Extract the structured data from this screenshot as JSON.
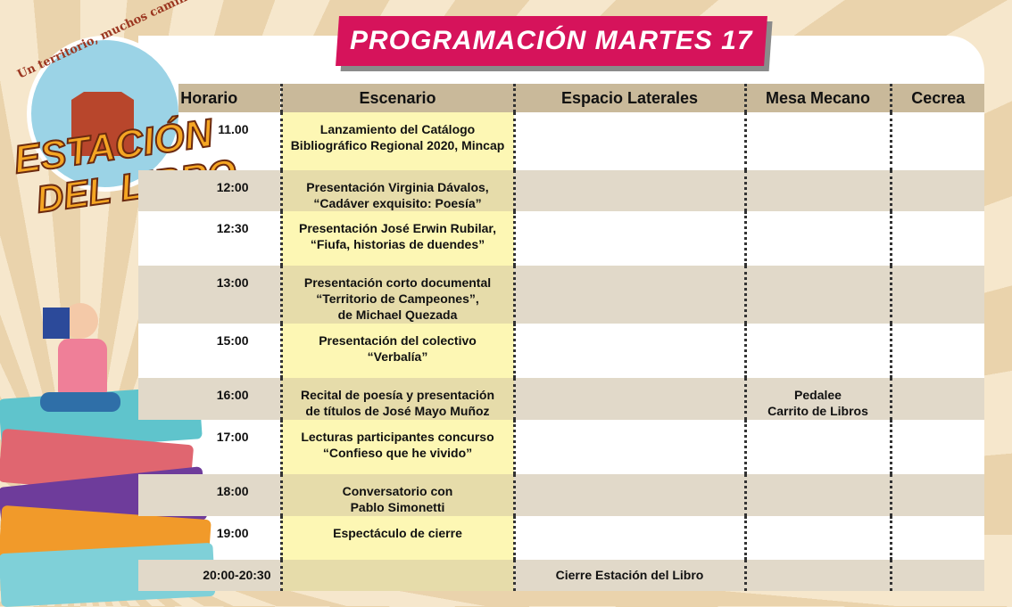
{
  "banner": {
    "title": "PROGRAMACIÓN MARTES 17"
  },
  "logo": {
    "tagline": "Un territorio, muchos caminos",
    "line1": "ESTACIÓN",
    "line2": "DEL LIBRO"
  },
  "table": {
    "headers": [
      "Horario",
      "Escenario",
      "Espacio Laterales",
      "Mesa Mecano",
      "Cecrea"
    ],
    "rows": [
      {
        "time": "11.00",
        "escenario": "Lanzamiento del Catálogo\nBibliográfico Regional 2020, Mincap",
        "laterales": "",
        "mecano": "",
        "cecrea": ""
      },
      {
        "time": "12:00",
        "escenario": "Presentación Virginia Dávalos,\n“Cadáver exquisito: Poesía”",
        "laterales": "",
        "mecano": "",
        "cecrea": ""
      },
      {
        "time": "12:30",
        "escenario": "Presentación  José Erwin Rubilar,\n“Fiufa, historias de duendes”",
        "laterales": "",
        "mecano": "",
        "cecrea": ""
      },
      {
        "time": "13:00",
        "escenario": "Presentación corto documental\n“Territorio de Campeones”,\nde Michael Quezada",
        "laterales": "",
        "mecano": "",
        "cecrea": ""
      },
      {
        "time": "15:00",
        "escenario": "Presentación del colectivo\n“Verbalía”",
        "laterales": "",
        "mecano": "",
        "cecrea": ""
      },
      {
        "time": "16:00",
        "escenario": "Recital de poesía y presentación\nde títulos de José Mayo Muñoz",
        "laterales": "",
        "mecano": "Pedalee\nCarrito de Libros",
        "cecrea": ""
      },
      {
        "time": "17:00",
        "escenario": "Lecturas participantes concurso\n“Confieso que he vivido”",
        "laterales": "",
        "mecano": "",
        "cecrea": ""
      },
      {
        "time": "18:00",
        "escenario": "Conversatorio con\nPablo Simonetti",
        "laterales": "",
        "mecano": "",
        "cecrea": ""
      },
      {
        "time": "19:00",
        "escenario": "Espectáculo de cierre",
        "laterales": "",
        "mecano": "",
        "cecrea": ""
      },
      {
        "time": "20:00-20:30",
        "escenario": "",
        "laterales": "Cierre Estación del Libro",
        "mecano": "",
        "cecrea": ""
      }
    ]
  },
  "colors": {
    "banner": "#d6135b",
    "header": "#c9b99a",
    "stage": "#fdf7b4",
    "alt_row": "#e1d9c9"
  }
}
